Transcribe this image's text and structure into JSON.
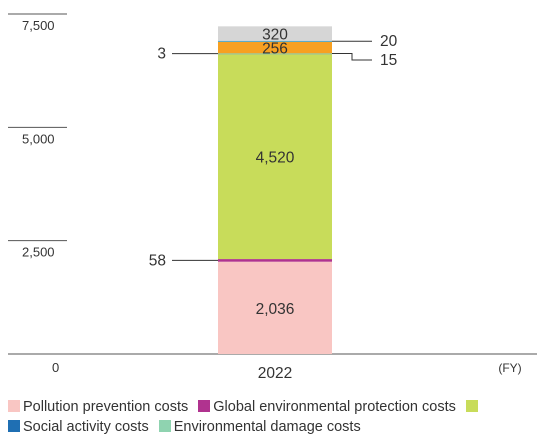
{
  "chart_data": {
    "type": "bar",
    "stacked": true,
    "categories": [
      "2022"
    ],
    "x_unit_label": "(FY)",
    "y_ticks": [
      0,
      2500,
      5000,
      7500
    ],
    "y_tick_labels": [
      "0",
      "2,500",
      "5,000",
      "7,500"
    ],
    "ylim": [
      0,
      7500
    ],
    "grid": false,
    "legend_position": "bottom",
    "series": [
      {
        "name": "Pollution prevention costs",
        "values": [
          2036
        ],
        "label": "2,036",
        "color": "#f9c6c3",
        "label_position": "inside"
      },
      {
        "name": "Global environmental protection costs",
        "values": [
          58
        ],
        "label": "58",
        "color": "#b0338f",
        "label_position": "left"
      },
      {
        "name": "",
        "values": [
          4520
        ],
        "label": "4,520",
        "color": "#c8dc5a",
        "label_position": "inside"
      },
      {
        "name": "Social activity costs",
        "values": [
          3
        ],
        "label": "3",
        "color": "#1f6fb3",
        "label_position": "left"
      },
      {
        "name": "Environmental damage costs",
        "values": [
          15
        ],
        "label": "15",
        "color": "#8fd3b0",
        "label_position": "right-elbow"
      },
      {
        "name": "",
        "values": [
          256
        ],
        "label": "256",
        "color": "#f7a021",
        "label_position": "inside"
      },
      {
        "name": "",
        "values": [
          20
        ],
        "label": "20",
        "color": "#2a9fd6",
        "label_position": "right"
      },
      {
        "name": "",
        "values": [
          320
        ],
        "label": "320",
        "color": "#d6d6d6",
        "label_position": "inside"
      }
    ]
  },
  "legend": [
    {
      "label": "Pollution prevention costs",
      "color": "#f9c6c3"
    },
    {
      "label": "Global environmental protection costs",
      "color": "#b0338f"
    },
    {
      "label": "",
      "color": "#c8dc5a"
    },
    {
      "label": "Social activity costs",
      "color": "#1f6fb3"
    },
    {
      "label": "Environmental damage costs",
      "color": "#8fd3b0"
    }
  ]
}
